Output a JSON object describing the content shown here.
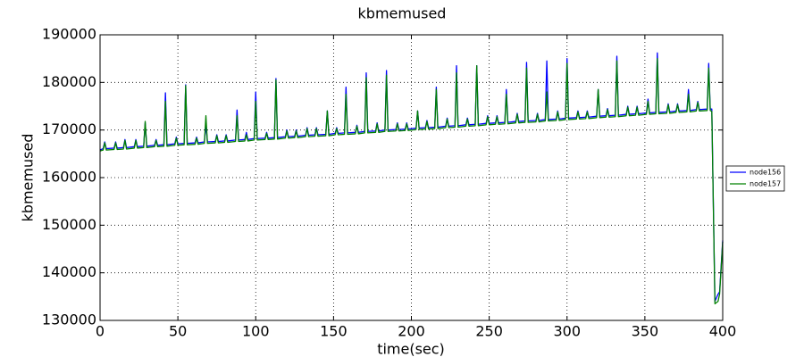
{
  "chart_data": {
    "type": "line",
    "title": "kbmemused",
    "x_label": "time(sec)",
    "y_label": "kbmemused",
    "x": [
      0,
      2,
      3,
      4,
      9,
      10,
      11,
      15,
      16,
      17,
      22,
      23,
      24,
      28,
      29,
      30,
      35,
      36,
      37,
      41,
      42,
      43,
      48,
      49,
      50,
      54,
      55,
      56,
      61,
      62,
      63,
      67,
      68,
      69,
      74,
      75,
      76,
      80,
      81,
      82,
      87,
      88,
      89,
      93,
      94,
      95,
      99,
      100,
      101,
      106,
      107,
      108,
      112,
      113,
      114,
      119,
      120,
      121,
      125,
      126,
      127,
      132,
      133,
      134,
      138,
      139,
      140,
      145,
      146,
      147,
      151,
      152,
      153,
      157,
      158,
      159,
      164,
      165,
      166,
      170,
      171,
      172,
      177,
      178,
      179,
      183,
      184,
      185,
      190,
      191,
      192,
      196,
      197,
      198,
      203,
      204,
      205,
      209,
      210,
      211,
      215,
      216,
      217,
      222,
      223,
      224,
      228,
      229,
      230,
      235,
      236,
      237,
      241,
      242,
      243,
      248,
      249,
      250,
      254,
      255,
      256,
      260,
      261,
      262,
      267,
      268,
      269,
      273,
      274,
      275,
      280,
      281,
      282,
      286,
      287,
      288,
      293,
      294,
      295,
      299,
      300,
      301,
      306,
      307,
      308,
      312,
      313,
      314,
      319,
      320,
      321,
      325,
      326,
      327,
      331,
      332,
      333,
      338,
      339,
      340,
      344,
      345,
      346,
      351,
      352,
      353,
      357,
      358,
      359,
      364,
      365,
      366,
      370,
      371,
      372,
      377,
      378,
      379,
      383,
      384,
      385,
      390,
      391,
      392,
      393,
      395,
      397,
      398,
      400
    ],
    "series": [
      {
        "name": "node156",
        "color": "#0000ff",
        "values": [
          165800,
          166100,
          167500,
          166100,
          166200,
          167500,
          166200,
          166300,
          168000,
          166300,
          166500,
          168000,
          166500,
          166600,
          171500,
          166600,
          166800,
          168000,
          166800,
          166900,
          177800,
          166900,
          167100,
          168500,
          167100,
          167200,
          179500,
          167200,
          167300,
          168500,
          167300,
          167500,
          171000,
          167500,
          167600,
          169000,
          167600,
          167700,
          169000,
          167700,
          167900,
          174200,
          167900,
          168000,
          169500,
          168000,
          168200,
          178000,
          168200,
          168300,
          169500,
          168300,
          168400,
          180800,
          168400,
          168600,
          170000,
          168600,
          168700,
          170000,
          168700,
          168900,
          170500,
          168900,
          169000,
          170500,
          169000,
          169100,
          174000,
          169100,
          169300,
          170500,
          169300,
          169400,
          179000,
          169400,
          169500,
          171000,
          169500,
          169700,
          182000,
          169700,
          169800,
          171500,
          169800,
          170000,
          182500,
          170000,
          170100,
          171500,
          170100,
          170200,
          171500,
          170200,
          170400,
          174000,
          170400,
          170500,
          172000,
          170500,
          170600,
          179000,
          170600,
          170800,
          172500,
          170800,
          170900,
          183500,
          170900,
          171100,
          172500,
          171100,
          171200,
          183500,
          171200,
          171400,
          173000,
          171400,
          171500,
          173000,
          171500,
          171600,
          178500,
          171600,
          171800,
          173500,
          171800,
          171900,
          184200,
          171900,
          172000,
          173500,
          172000,
          172200,
          184500,
          172200,
          172300,
          174000,
          172300,
          172500,
          185000,
          172500,
          172600,
          174000,
          172600,
          172700,
          174000,
          172700,
          172900,
          178500,
          172900,
          173000,
          174500,
          173000,
          173100,
          185500,
          173100,
          173300,
          175000,
          173300,
          173400,
          175000,
          173400,
          173600,
          176500,
          173600,
          173700,
          186200,
          173700,
          173800,
          175500,
          173800,
          174000,
          175500,
          174000,
          174100,
          178500,
          174100,
          174300,
          176000,
          174300,
          174400,
          184000,
          174400,
          174400,
          134000,
          135500,
          136000,
          146800
        ]
      },
      {
        "name": "node157",
        "color": "#008000",
        "values": [
          165600,
          165800,
          167300,
          165800,
          165900,
          167300,
          165900,
          166000,
          167800,
          166000,
          166200,
          167800,
          166200,
          166300,
          171800,
          166300,
          166500,
          167800,
          166500,
          166600,
          176000,
          166600,
          166800,
          168300,
          166800,
          166900,
          179300,
          166900,
          167000,
          168300,
          167000,
          167200,
          173000,
          167200,
          167300,
          168800,
          167300,
          167400,
          168800,
          167400,
          167600,
          173000,
          167600,
          167700,
          169000,
          167700,
          167900,
          176000,
          167900,
          168000,
          169300,
          168000,
          168100,
          180500,
          168100,
          168300,
          169800,
          168300,
          168400,
          169800,
          168400,
          168600,
          170300,
          168600,
          168700,
          170300,
          168700,
          168800,
          174000,
          168800,
          169000,
          170300,
          169000,
          169100,
          177500,
          169100,
          169200,
          170800,
          169200,
          169400,
          181000,
          169400,
          169500,
          171300,
          169500,
          169700,
          181500,
          169700,
          169800,
          171300,
          169800,
          169900,
          171300,
          169900,
          170100,
          174000,
          170100,
          170200,
          171800,
          170200,
          170300,
          178500,
          170300,
          170500,
          172300,
          170500,
          170600,
          182000,
          170600,
          170800,
          172300,
          170800,
          170900,
          183500,
          170900,
          171100,
          172800,
          171100,
          171200,
          172800,
          171200,
          171300,
          177500,
          171300,
          171500,
          173300,
          171500,
          171600,
          183000,
          171600,
          171700,
          173300,
          171700,
          171900,
          178000,
          171900,
          172000,
          173800,
          172000,
          172200,
          184000,
          172200,
          172300,
          173800,
          172300,
          172400,
          173800,
          172400,
          172600,
          178500,
          172600,
          172700,
          174300,
          172700,
          172800,
          184500,
          172800,
          173000,
          174800,
          173000,
          173100,
          174800,
          173100,
          173300,
          176000,
          173300,
          173400,
          185000,
          173400,
          173500,
          175300,
          173500,
          173700,
          175300,
          173700,
          173800,
          177500,
          173800,
          174000,
          175800,
          174000,
          174100,
          183000,
          174100,
          173900,
          133500,
          134000,
          135500,
          146500
        ]
      }
    ],
    "xlim": [
      0,
      400
    ],
    "xticks": [
      0,
      50,
      100,
      150,
      200,
      250,
      300,
      350,
      400
    ],
    "ylim": [
      130000,
      190000
    ],
    "yticks": [
      130000,
      140000,
      150000,
      160000,
      170000,
      180000,
      190000
    ],
    "grid": true,
    "legend": "right"
  }
}
